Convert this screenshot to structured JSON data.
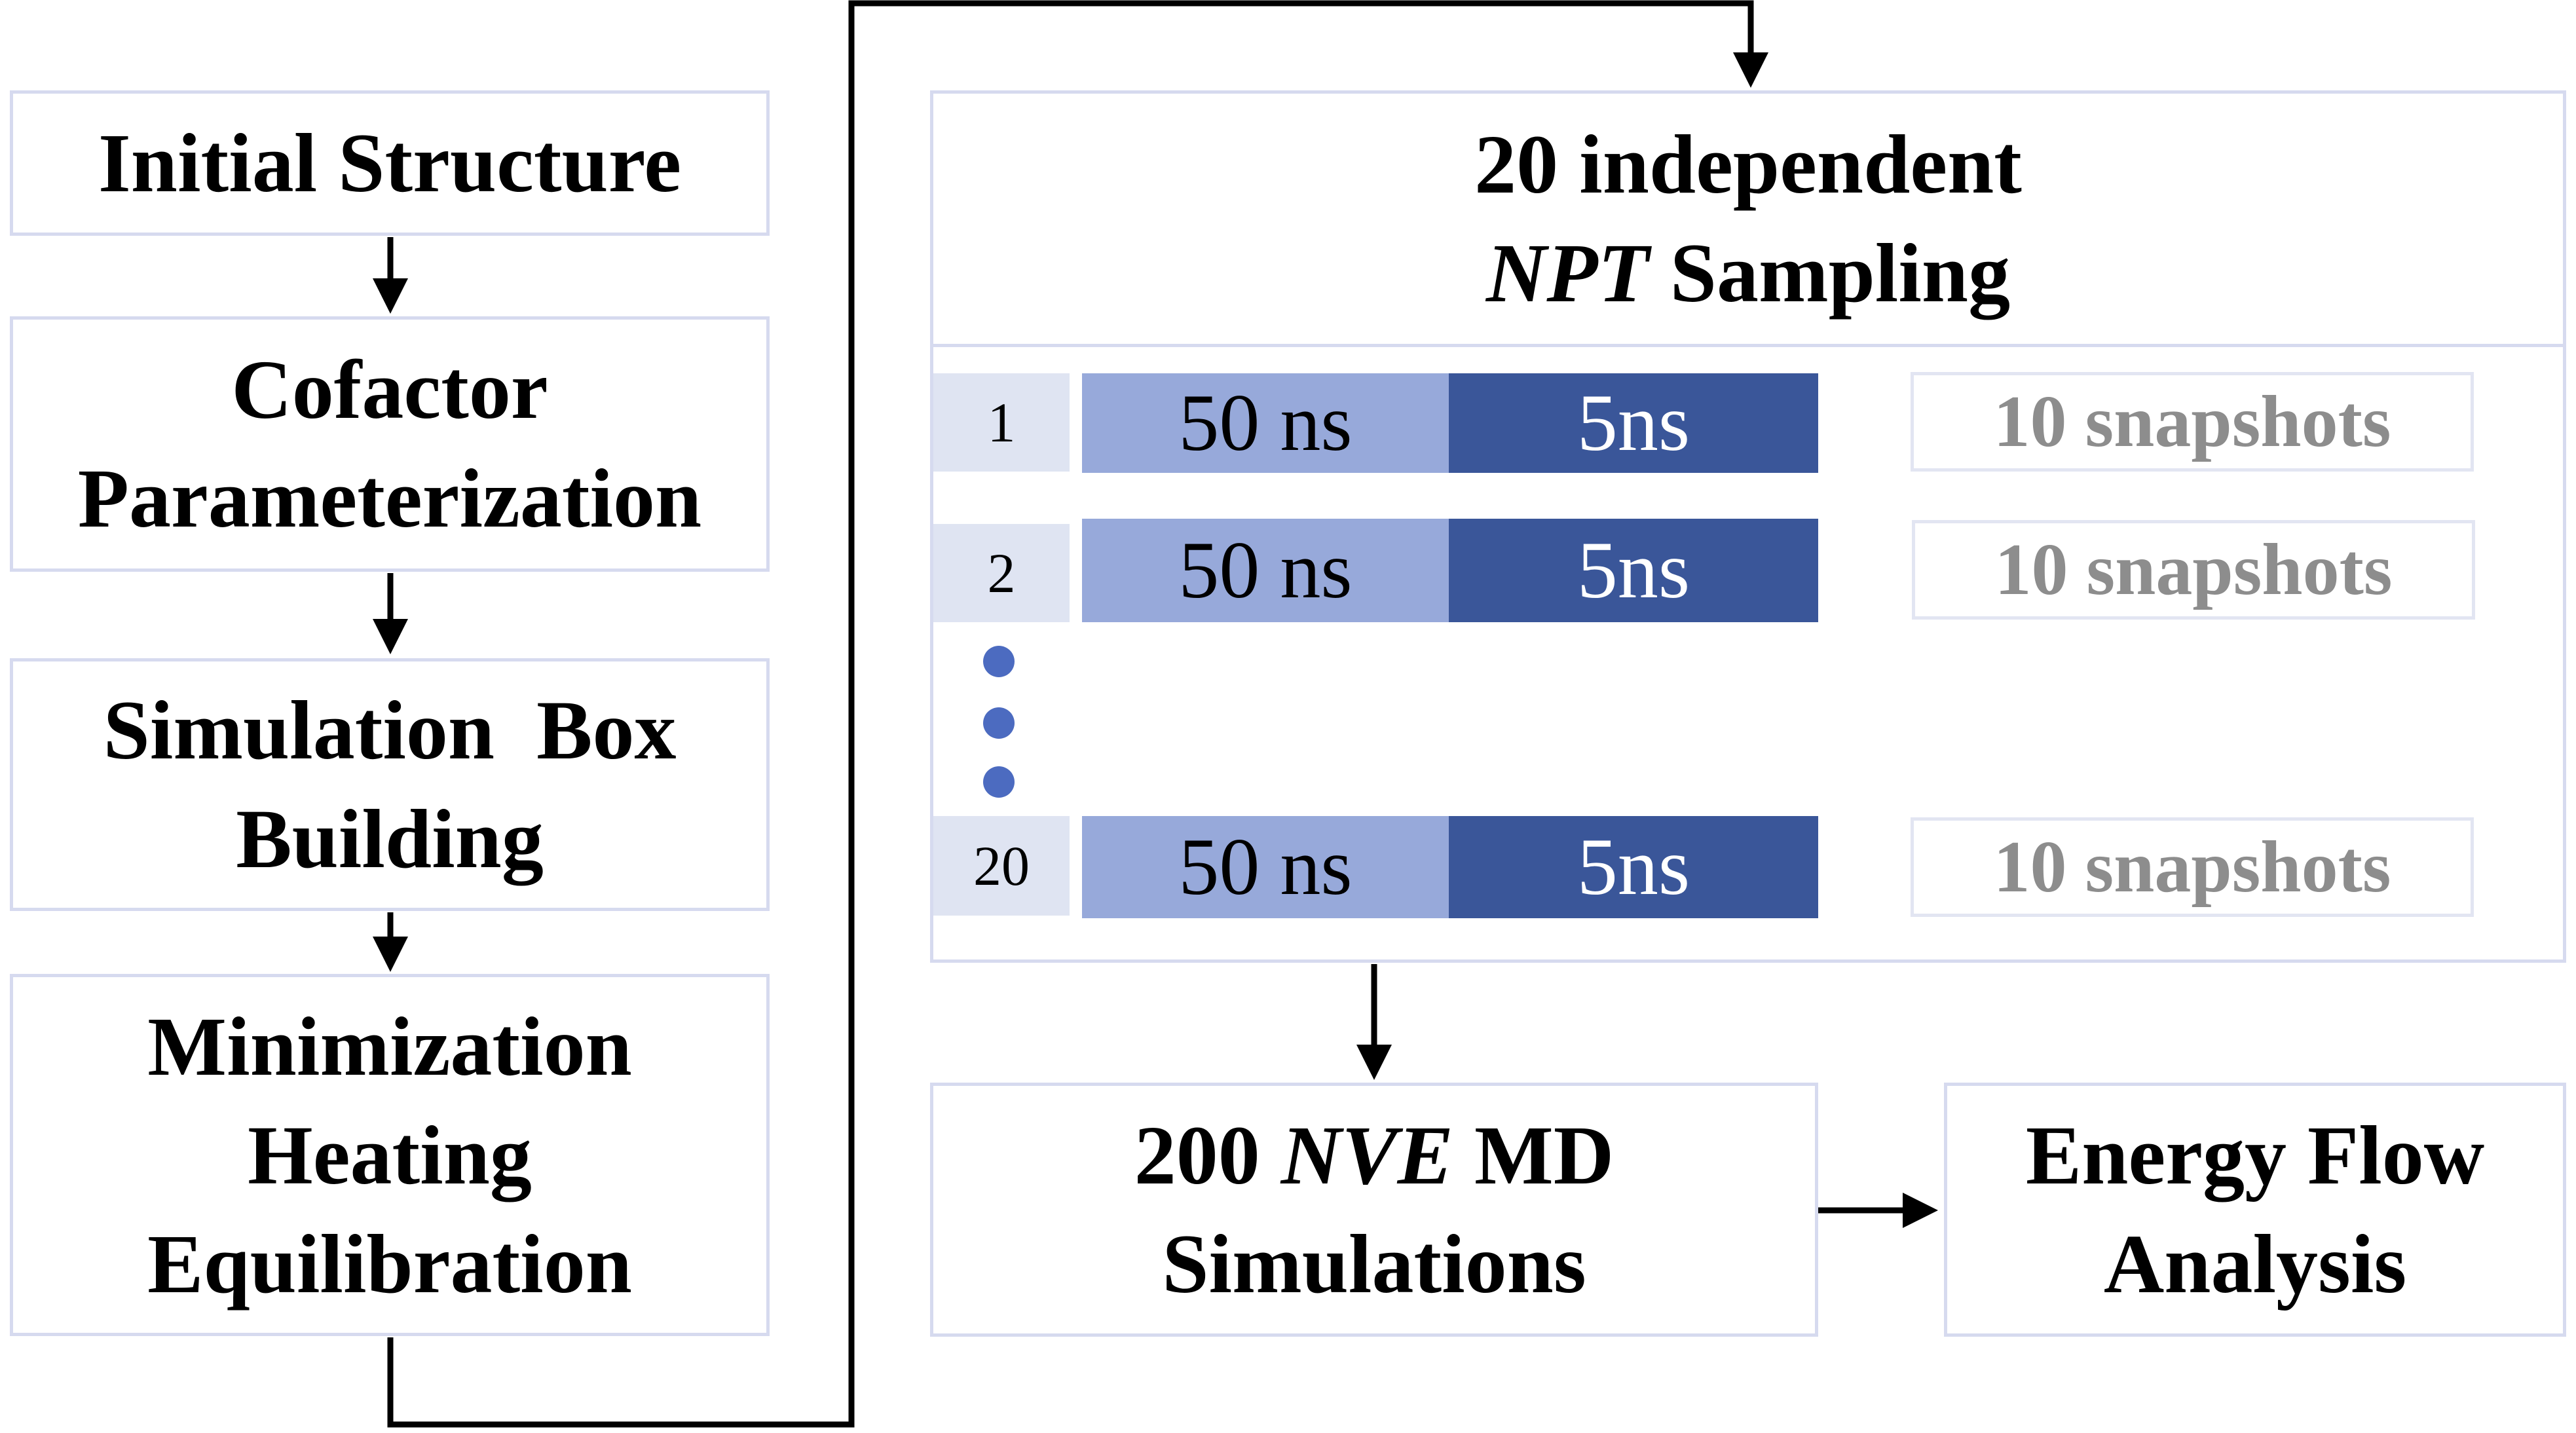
{
  "left_column": {
    "step1": [
      "Initial Structure"
    ],
    "step2": [
      "Cofactor",
      "Parameterization"
    ],
    "step3": [
      "Simulation  Box",
      "Building"
    ],
    "step4": [
      "Minimization",
      "Heating",
      "Equilibration"
    ]
  },
  "sampling": {
    "title_line1": "20 independent",
    "title_line2_italic": "NPT",
    "title_line2_rest": " Sampling",
    "rows": [
      {
        "index": "1",
        "segment_a": "50 ns",
        "segment_b": "5ns",
        "result": "10 snapshots"
      },
      {
        "index": "2",
        "segment_a": "50 ns",
        "segment_b": "5ns",
        "result": "10 snapshots"
      },
      {
        "index": "20",
        "segment_a": "50 ns",
        "segment_b": "5ns",
        "result": "10 snapshots"
      }
    ]
  },
  "nve": {
    "line1_prefix": "200 ",
    "line1_italic": "NVE",
    "line1_suffix": " MD",
    "line2": "Simulations"
  },
  "analysis": {
    "line1": "Energy Flow",
    "line2": "Analysis"
  },
  "colors": {
    "box_border": "#d6daef",
    "index_fill": "#dfe4f2",
    "segment_a_fill": "#97a9da",
    "segment_b_fill": "#3a5699",
    "dot_fill": "#4c6bc0",
    "snapshot_text": "#8d8d8d"
  }
}
